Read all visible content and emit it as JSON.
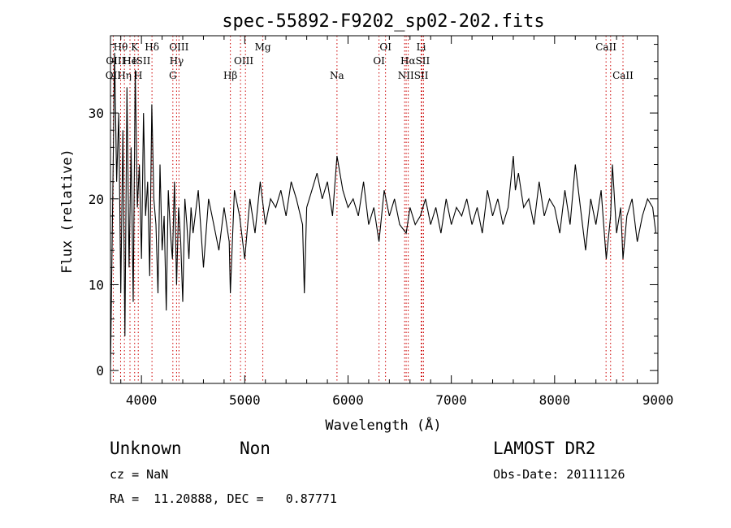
{
  "chart_data": {
    "type": "line",
    "title": "spec-55892-F9202_sp02-202.fits",
    "xlabel": "Wavelength (Å)",
    "ylabel": "Flux (relative)",
    "xlim": [
      3700,
      9000
    ],
    "ylim": [
      -1.5,
      39
    ],
    "x_ticks": [
      4000,
      5000,
      6000,
      7000,
      8000,
      9000
    ],
    "y_ticks": [
      0,
      10,
      20,
      30
    ],
    "grid": false,
    "series": [
      {
        "x": [
          3700,
          3720,
          3740,
          3760,
          3780,
          3800,
          3820,
          3840,
          3860,
          3880,
          3900,
          3920,
          3940,
          3960,
          3980,
          4000,
          4020,
          4040,
          4060,
          4080,
          4100,
          4120,
          4140,
          4160,
          4180,
          4200,
          4220,
          4240,
          4260,
          4280,
          4300,
          4320,
          4340,
          4360,
          4380,
          4400,
          4420,
          4440,
          4460,
          4480,
          4500,
          4550,
          4600,
          4650,
          4700,
          4750,
          4800,
          4850,
          4861,
          4900,
          4950,
          5000,
          5050,
          5100,
          5150,
          5200,
          5250,
          5300,
          5350,
          5400,
          5450,
          5500,
          5560,
          5577,
          5600,
          5650,
          5700,
          5750,
          5800,
          5850,
          5893,
          5950,
          6000,
          6050,
          6100,
          6150,
          6200,
          6250,
          6300,
          6350,
          6400,
          6450,
          6500,
          6563,
          6600,
          6650,
          6700,
          6750,
          6800,
          6850,
          6900,
          6950,
          7000,
          7050,
          7100,
          7150,
          7200,
          7250,
          7300,
          7350,
          7400,
          7450,
          7500,
          7550,
          7600,
          7620,
          7650,
          7700,
          7750,
          7800,
          7850,
          7900,
          7950,
          8000,
          8050,
          8100,
          8150,
          8200,
          8250,
          8300,
          8350,
          8400,
          8450,
          8500,
          8542,
          8560,
          8600,
          8640,
          8662,
          8700,
          8750,
          8800,
          8850,
          8900,
          8950,
          8980
        ],
        "y": [
          0,
          18,
          37,
          22,
          30,
          9,
          28,
          4,
          33,
          12,
          26,
          8,
          35,
          19,
          24,
          13,
          30,
          18,
          22,
          11,
          31,
          20,
          17,
          9,
          24,
          14,
          18,
          7,
          21,
          16,
          13,
          22,
          10,
          19,
          15,
          8,
          20,
          17,
          13,
          19,
          16,
          21,
          12,
          20,
          17,
          14,
          19,
          15,
          9,
          21,
          18,
          13,
          20,
          16,
          22,
          17,
          20,
          19,
          21,
          18,
          22,
          20,
          17,
          9,
          19,
          21,
          23,
          20,
          22,
          18,
          25,
          21,
          19,
          20,
          18,
          22,
          17,
          19,
          15,
          21,
          18,
          20,
          17,
          16,
          19,
          17,
          18,
          20,
          17,
          19,
          16,
          20,
          17,
          19,
          18,
          20,
          17,
          19,
          16,
          21,
          18,
          20,
          17,
          19,
          25,
          21,
          23,
          19,
          20,
          17,
          22,
          18,
          20,
          19,
          16,
          21,
          17,
          24,
          19,
          14,
          20,
          17,
          21,
          13,
          18,
          24,
          16,
          19,
          13,
          18,
          20,
          15,
          18,
          20,
          19,
          16
        ]
      }
    ],
    "line_labels": [
      {
        "text": "OII",
        "x": 3727,
        "row": 2
      },
      {
        "text": "Hθ",
        "x": 3798,
        "row": 0
      },
      {
        "text": "OIII",
        "x": 3750,
        "row": 1
      },
      {
        "text": "K",
        "x": 3934,
        "row": 0
      },
      {
        "text": "He",
        "x": 3889,
        "row": 1
      },
      {
        "text": "Hη",
        "x": 3835,
        "row": 2
      },
      {
        "text": "Hδ",
        "x": 4102,
        "row": 0
      },
      {
        "text": "ISII",
        "x": 4000,
        "row": 1
      },
      {
        "text": "H",
        "x": 3969,
        "row": 2
      },
      {
        "text": "OIII",
        "x": 4363,
        "row": 0
      },
      {
        "text": "Hγ",
        "x": 4340,
        "row": 1
      },
      {
        "text": "G",
        "x": 4304,
        "row": 2
      },
      {
        "text": "Mg",
        "x": 5175,
        "row": 0
      },
      {
        "text": "OIII",
        "x": 4990,
        "row": 1
      },
      {
        "text": "Hβ",
        "x": 4861,
        "row": 2
      },
      {
        "text": "Na",
        "x": 5893,
        "row": 2
      },
      {
        "text": "OI",
        "x": 6363,
        "row": 0
      },
      {
        "text": "OI",
        "x": 6300,
        "row": 1
      },
      {
        "text": "Li",
        "x": 6708,
        "row": 0
      },
      {
        "text": "HαSII",
        "x": 6650,
        "row": 1
      },
      {
        "text": "NIISII",
        "x": 6630,
        "row": 2
      },
      {
        "text": "CaII",
        "x": 8498,
        "row": 0
      },
      {
        "text": "CaII",
        "x": 8662,
        "row": 2
      }
    ],
    "line_markers": [
      3727,
      3798,
      3835,
      3889,
      3934,
      3969,
      4102,
      4304,
      4340,
      4363,
      4861,
      4959,
      5007,
      5175,
      5893,
      6300,
      6363,
      6548,
      6563,
      6583,
      6708,
      6716,
      6731,
      8498,
      8542,
      8662
    ]
  },
  "info": {
    "object_class": "Unknown",
    "subclass": "Non",
    "survey": "LAMOST DR2",
    "cz": "cz = NaN",
    "obs_date": "Obs-Date: 20111126",
    "coords": "RA =  11.20888, DEC =   0.87771"
  },
  "colors": {
    "line": "#000000",
    "marker": "#cc0000",
    "axes": "#000000",
    "background": "#ffffff"
  }
}
